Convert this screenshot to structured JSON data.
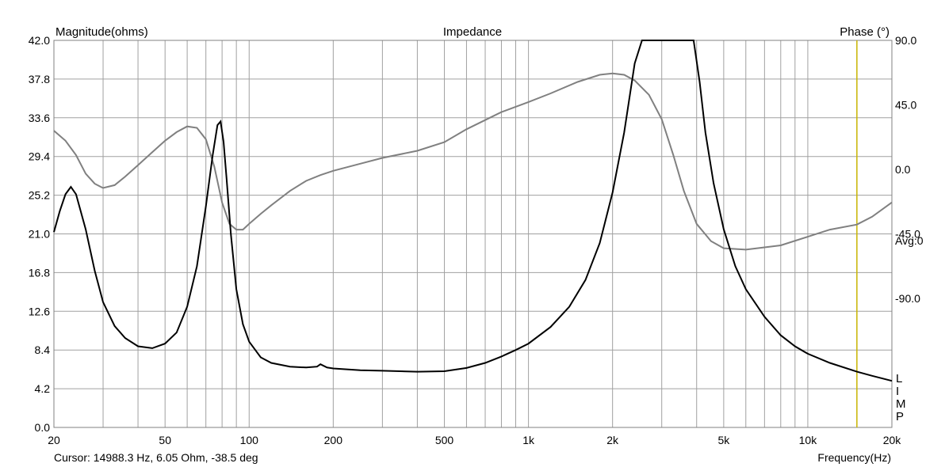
{
  "chart_data": {
    "type": "line",
    "title": "Impedance",
    "ylabel_left": "Magnitude(ohms)",
    "ylabel_right": "Phase (°)",
    "xlabel": "Frequency(Hz)",
    "x_scale": "log",
    "xlim": [
      20,
      20000
    ],
    "ylim_left": [
      0,
      42
    ],
    "ylim_right": [
      -180,
      90
    ],
    "grid": true,
    "x_tick_labels": [
      "20",
      "50",
      "100",
      "200",
      "500",
      "1k",
      "2k",
      "5k",
      "10k",
      "20k"
    ],
    "x_tick_values": [
      20,
      50,
      100,
      200,
      500,
      1000,
      2000,
      5000,
      10000,
      20000
    ],
    "y_tick_labels_left": [
      "0.0",
      "4.2",
      "8.4",
      "12.6",
      "16.8",
      "21.0",
      "25.2",
      "29.4",
      "33.6",
      "37.8",
      "42.0"
    ],
    "y_tick_values_left": [
      0,
      4.2,
      8.4,
      12.6,
      16.8,
      21.0,
      25.2,
      29.4,
      33.6,
      37.8,
      42.0
    ],
    "y_tick_labels_right": [
      "90.0",
      "45.0",
      "0.0",
      "-45.0",
      "-90.0"
    ],
    "y_tick_values_right": [
      90,
      45,
      0,
      -45,
      -90
    ],
    "right_annotation": "Avg:0",
    "side_letters": [
      "L",
      "I",
      "M",
      "P"
    ],
    "cursor_text": "Cursor: 14988.3 Hz, 6.05 Ohm, -38.5 deg",
    "cursor_x": 14988.3,
    "colors": {
      "magnitude": "#000000",
      "phase": "#808080",
      "cursor": "#c8b400",
      "grid": "#a0a0a0"
    },
    "series": [
      {
        "name": "Magnitude",
        "axis": "left",
        "x": [
          20,
          21,
          22,
          23,
          24,
          26,
          28,
          30,
          33,
          36,
          40,
          45,
          50,
          55,
          60,
          65,
          70,
          74,
          77,
          79,
          81,
          83,
          86,
          90,
          95,
          100,
          110,
          120,
          140,
          160,
          175,
          180,
          190,
          200,
          250,
          300,
          400,
          500,
          600,
          700,
          800,
          900,
          1000,
          1200,
          1400,
          1600,
          1800,
          2000,
          2200,
          2400,
          2550,
          3900,
          4100,
          4300,
          4600,
          5000,
          5500,
          6000,
          7000,
          8000,
          9000,
          10000,
          12000,
          14988,
          17000,
          20000
        ],
        "y": [
          21.2,
          23.5,
          25.3,
          26.1,
          25.3,
          21.5,
          17.0,
          13.6,
          11.0,
          9.7,
          8.8,
          8.6,
          9.1,
          10.3,
          13.1,
          17.5,
          24.0,
          29.5,
          32.8,
          33.2,
          31.0,
          27.0,
          21.0,
          15.0,
          11.2,
          9.3,
          7.6,
          7.0,
          6.6,
          6.5,
          6.6,
          6.85,
          6.5,
          6.4,
          6.2,
          6.15,
          6.05,
          6.1,
          6.45,
          7.0,
          7.7,
          8.4,
          9.1,
          10.9,
          13.1,
          16.0,
          20.0,
          25.5,
          32.0,
          39.5,
          42.0,
          42.0,
          37.5,
          32.0,
          26.5,
          21.5,
          17.5,
          15.0,
          12.0,
          10.0,
          8.8,
          8.0,
          7.0,
          6.05,
          5.6,
          5.05
        ]
      },
      {
        "name": "Phase",
        "axis": "right",
        "x": [
          20,
          22,
          24,
          26,
          28,
          30,
          33,
          36,
          40,
          45,
          50,
          55,
          60,
          65,
          70,
          75,
          80,
          85,
          90,
          95,
          100,
          110,
          120,
          140,
          160,
          180,
          200,
          250,
          300,
          400,
          500,
          600,
          800,
          1000,
          1200,
          1500,
          1800,
          2000,
          2200,
          2400,
          2700,
          3000,
          3300,
          3600,
          4000,
          4500,
          5000,
          6000,
          8000,
          10000,
          12000,
          14988,
          17000,
          20000
        ],
        "y": [
          27,
          20,
          10,
          -3,
          -10,
          -13,
          -11,
          -5,
          3,
          12,
          20,
          26,
          30,
          29,
          21,
          2,
          -23,
          -38,
          -42,
          -42,
          -38,
          -31,
          -25,
          -15,
          -8,
          -4,
          -1,
          4,
          8,
          13,
          19,
          28,
          40,
          47,
          53,
          61,
          66,
          67,
          66,
          62,
          52,
          35,
          10,
          -15,
          -38,
          -50,
          -55,
          -56,
          -53,
          -47,
          -42,
          -38.5,
          -33,
          -23
        ]
      }
    ]
  }
}
